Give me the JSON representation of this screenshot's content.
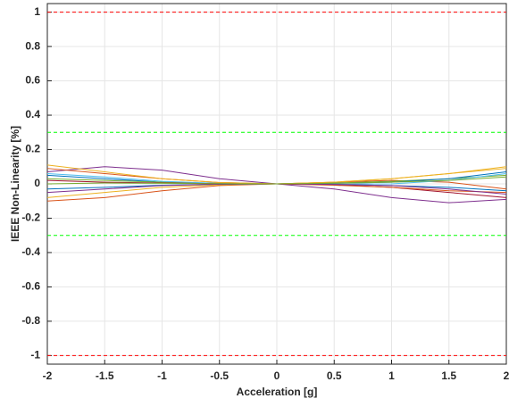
{
  "chart_data": {
    "type": "line",
    "xlabel": "Acceleration [g]",
    "ylabel": "IEEE Non-Linearity [%]",
    "x": [
      -2,
      -1.5,
      -1,
      -0.5,
      0,
      0.5,
      1,
      1.5,
      2
    ],
    "series": [
      {
        "color": "#0072BD",
        "values": [
          0.05,
          0.03,
          0.01,
          0.003,
          0,
          -0.003,
          -0.01,
          -0.02,
          -0.04
        ]
      },
      {
        "color": "#D95319",
        "values": [
          -0.1,
          -0.08,
          -0.04,
          -0.01,
          0,
          0.01,
          0.02,
          0.01,
          -0.03
        ]
      },
      {
        "color": "#EDB120",
        "values": [
          -0.08,
          -0.05,
          -0.02,
          -0.005,
          0,
          0.01,
          0.03,
          0.06,
          0.1
        ]
      },
      {
        "color": "#7E2F8E",
        "values": [
          0.07,
          0.1,
          0.08,
          0.03,
          0,
          -0.03,
          -0.08,
          -0.11,
          -0.09
        ]
      },
      {
        "color": "#77AC30",
        "values": [
          0.03,
          0.02,
          0.01,
          0.002,
          0,
          0.005,
          0.015,
          0.03,
          0.05
        ]
      },
      {
        "color": "#4DBEEE",
        "values": [
          0.06,
          0.04,
          0.015,
          0.003,
          0,
          -0.002,
          0,
          0.02,
          0.06
        ]
      },
      {
        "color": "#A2142F",
        "values": [
          0.02,
          0.01,
          0.005,
          0.001,
          0,
          -0.005,
          -0.02,
          -0.05,
          -0.08
        ]
      },
      {
        "color": "#0072BD",
        "values": [
          -0.03,
          -0.02,
          -0.008,
          -0.002,
          0,
          0.003,
          0.01,
          0.03,
          0.07
        ]
      },
      {
        "color": "#D95319",
        "values": [
          0.09,
          0.06,
          0.03,
          0.008,
          0,
          -0.008,
          -0.02,
          -0.04,
          -0.05
        ]
      },
      {
        "color": "#EDB120",
        "values": [
          0.11,
          0.07,
          0.03,
          0.008,
          0,
          0.01,
          0.03,
          0.06,
          0.09
        ]
      },
      {
        "color": "#7E2F8E",
        "values": [
          -0.05,
          -0.03,
          -0.01,
          -0.002,
          0,
          -0.003,
          -0.01,
          -0.03,
          -0.06
        ]
      },
      {
        "color": "#77AC30",
        "values": [
          0,
          0.005,
          0.003,
          0.001,
          0,
          0.004,
          0.01,
          0.02,
          0.04
        ]
      }
    ],
    "reference_lines": [
      {
        "value": 1,
        "color": "#ff0000"
      },
      {
        "value": 0.3,
        "color": "#00ff00"
      },
      {
        "value": -0.3,
        "color": "#00ff00"
      },
      {
        "value": -1,
        "color": "#ff0000"
      }
    ],
    "xlim": [
      -2,
      2
    ],
    "xticks": [
      -2,
      -1.5,
      -1,
      -0.5,
      0,
      0.5,
      1,
      1.5,
      2
    ],
    "ylim": [
      -1.05,
      1.05
    ],
    "yticks": [
      -1,
      -0.8,
      -0.6,
      -0.4,
      -0.2,
      0,
      0.2,
      0.4,
      0.6,
      0.8,
      1
    ],
    "grid": true
  }
}
